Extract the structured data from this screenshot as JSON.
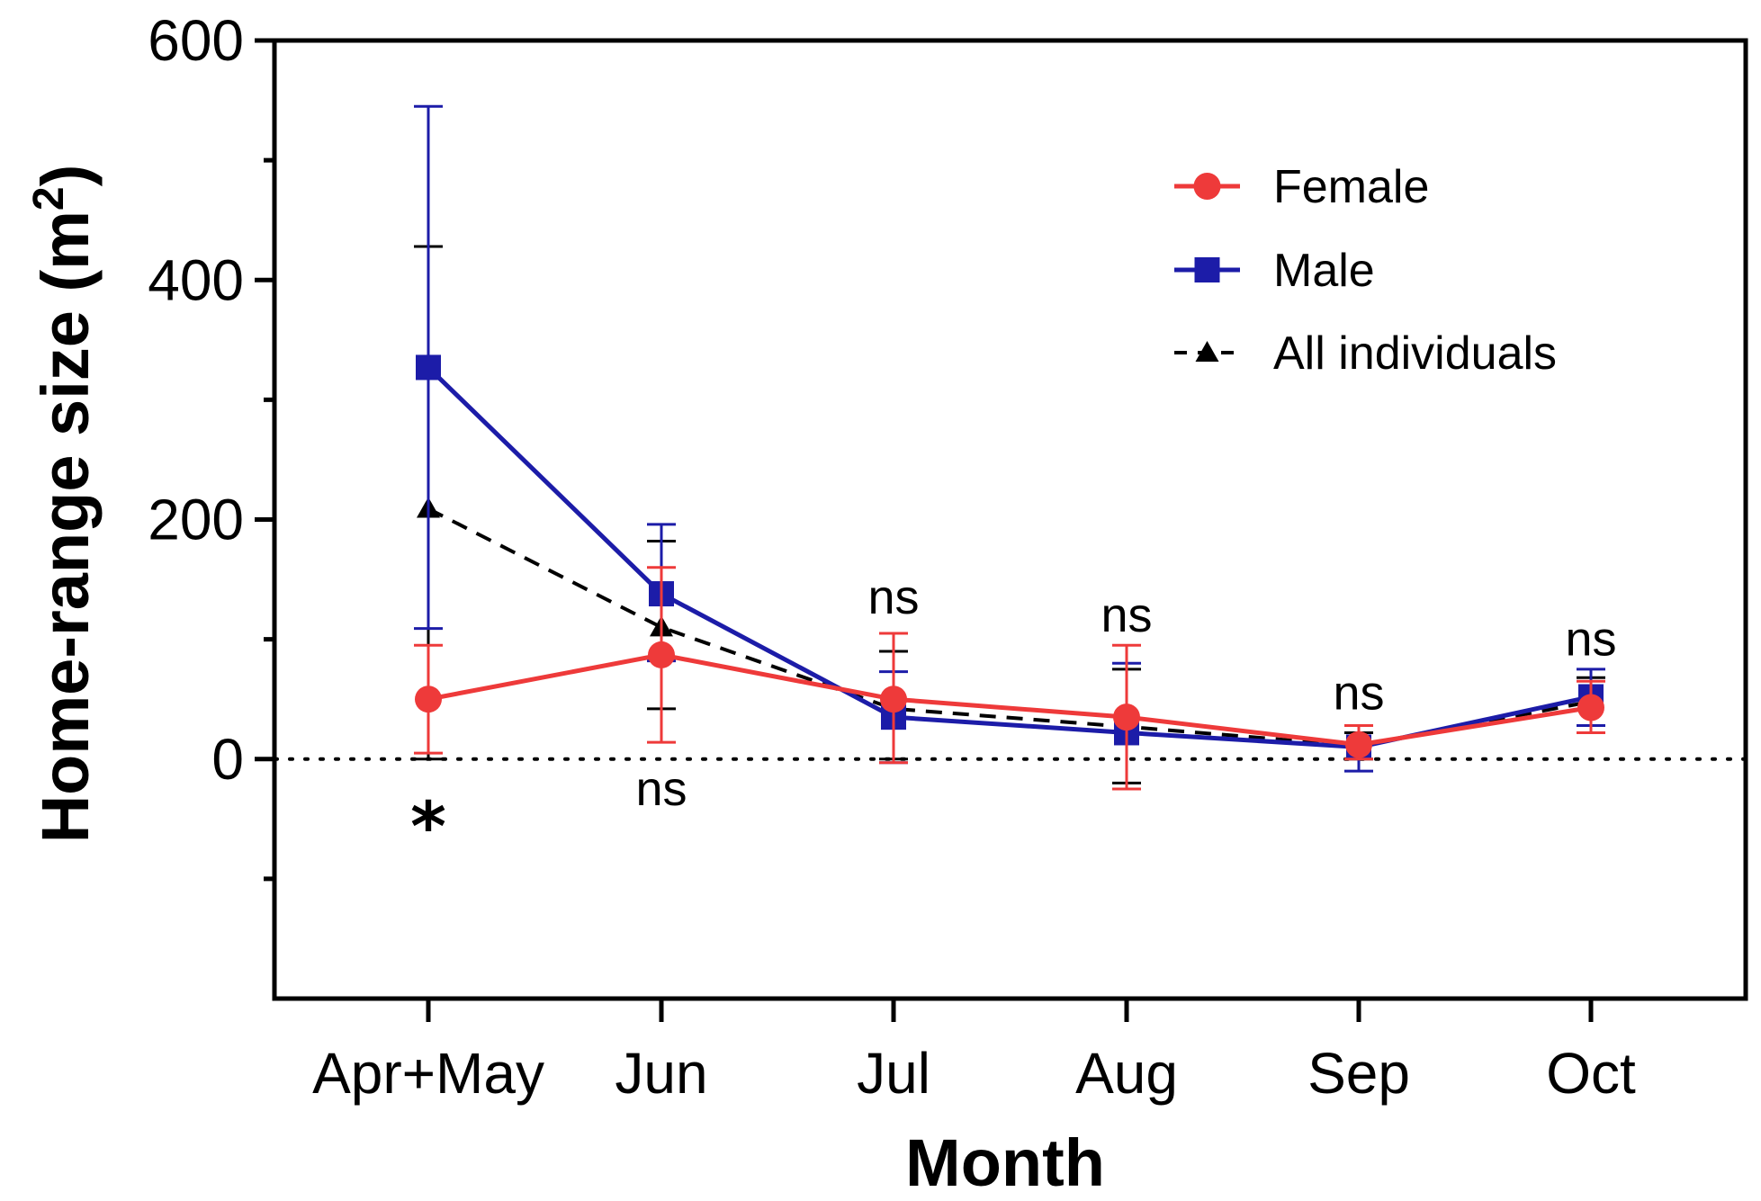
{
  "chart_data": {
    "type": "line",
    "title": "",
    "xlabel": "Month",
    "ylabel_prefix": "Home-range size (m",
    "ylabel_superscript": "2",
    "ylabel_suffix": ")",
    "ylim": [
      -200,
      600
    ],
    "yticks": [
      0,
      200,
      400,
      600
    ],
    "yticks_minor": [
      -100,
      100,
      300,
      500
    ],
    "grid": false,
    "reference_line": {
      "y": 0,
      "style": "dotted"
    },
    "legend_position": "top-right",
    "categories": [
      "Apr+May",
      "Jun",
      "Jul",
      "Aug",
      "Sep",
      "Oct"
    ],
    "series": [
      {
        "name": "Female",
        "color": "#ee3a3a",
        "marker": "circle",
        "line_style": "solid",
        "values": [
          50,
          87,
          50,
          35,
          12,
          43
        ],
        "error_upper": [
          95,
          160,
          105,
          95,
          28,
          65
        ],
        "error_lower": [
          5,
          14,
          -3,
          -25,
          0,
          22
        ]
      },
      {
        "name": "Male",
        "color": "#1c1ca8",
        "marker": "square",
        "line_style": "solid",
        "values": [
          327,
          138,
          35,
          22,
          10,
          52
        ],
        "error_upper": [
          545,
          196,
          73,
          80,
          28,
          75
        ],
        "error_lower": [
          109,
          82,
          -3,
          -25,
          -10,
          28
        ]
      },
      {
        "name": "All individuals",
        "color": "#000000",
        "marker": "triangle",
        "line_style": "dashed",
        "values": [
          209,
          110,
          42,
          27,
          11,
          48
        ],
        "error_upper": [
          428,
          182,
          90,
          75,
          22,
          68
        ],
        "error_lower": [
          0,
          42,
          0,
          -20,
          0,
          28
        ]
      }
    ],
    "annotations": [
      {
        "category": "Apr+May",
        "text": "*",
        "y": -40
      },
      {
        "category": "Jun",
        "text": "ns",
        "y": -25
      },
      {
        "category": "Jul",
        "text": "ns",
        "y": 135
      },
      {
        "category": "Aug",
        "text": "ns",
        "y": 120
      },
      {
        "category": "Sep",
        "text": "ns",
        "y": 55
      },
      {
        "category": "Oct",
        "text": "ns",
        "y": 100
      }
    ]
  }
}
